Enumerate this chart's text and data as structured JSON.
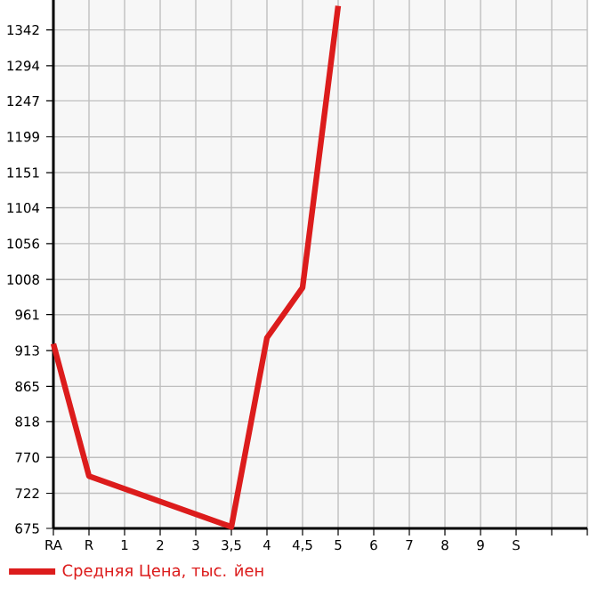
{
  "chart_data": {
    "type": "line",
    "categories": [
      "RA",
      "R",
      "1",
      "2",
      "3",
      "3,5",
      "4",
      "4,5",
      "5",
      "6",
      "7",
      "8",
      "9",
      "S",
      null,
      null
    ],
    "series": [
      {
        "name": "Средняя Цена, тыс. йен",
        "color": "#dc1c1c",
        "values": [
          922,
          745,
          null,
          null,
          null,
          677,
          930,
          997,
          1374,
          null,
          null,
          null,
          null,
          null,
          null,
          null
        ]
      }
    ],
    "ylim": [
      675,
      1382
    ],
    "yticks": [
      675,
      722,
      770,
      818,
      865,
      913,
      961,
      1008,
      1056,
      1104,
      1151,
      1199,
      1247,
      1294,
      1342
    ],
    "grid": true,
    "legend": "bottom",
    "marker": "none",
    "line_style": "solid"
  }
}
